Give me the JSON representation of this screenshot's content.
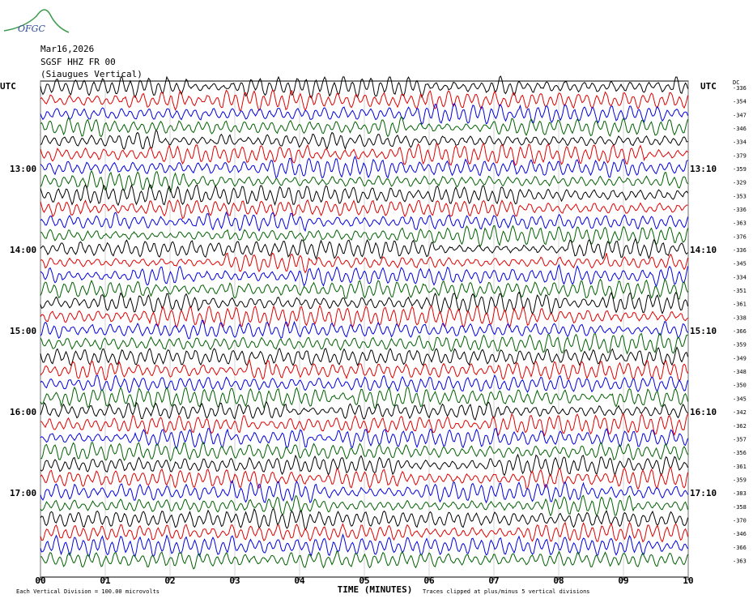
{
  "header": {
    "logo": "OFGC",
    "date": "Mar16,2026",
    "station": "SGSF HHZ FR 00",
    "location": "(Siaugues Vertical)",
    "left_unit": "UTC",
    "right_unit": "UTC",
    "dc_label": "DC"
  },
  "chart_data": {
    "type": "helicorder",
    "xlabel": "TIME (MINUTES)",
    "xlim": [
      0,
      10
    ],
    "xticks": [
      {
        "value": 0,
        "label": "00"
      },
      {
        "value": 1,
        "label": "01"
      },
      {
        "value": 2,
        "label": "02"
      },
      {
        "value": 3,
        "label": "03"
      },
      {
        "value": 4,
        "label": "04"
      },
      {
        "value": 5,
        "label": "05"
      },
      {
        "value": 6,
        "label": "06"
      },
      {
        "value": 7,
        "label": "07"
      },
      {
        "value": 8,
        "label": "08"
      },
      {
        "value": 9,
        "label": "09"
      },
      {
        "value": 10,
        "label": "10"
      }
    ],
    "trace_colors": [
      "#000000",
      "#e00000",
      "#0000e0",
      "#006000"
    ],
    "left_labels": [
      null,
      null,
      null,
      null,
      null,
      null,
      "13:00",
      null,
      null,
      null,
      null,
      null,
      "14:00",
      null,
      null,
      null,
      null,
      null,
      "15:00",
      null,
      null,
      null,
      null,
      null,
      "16:00",
      null,
      null,
      null,
      null,
      null,
      "17:00",
      null,
      null,
      null,
      null,
      null
    ],
    "right_labels": [
      null,
      null,
      null,
      null,
      null,
      null,
      "13:10",
      null,
      null,
      null,
      null,
      null,
      "14:10",
      null,
      null,
      null,
      null,
      null,
      "15:10",
      null,
      null,
      null,
      null,
      null,
      "16:10",
      null,
      null,
      null,
      null,
      null,
      "17:10",
      null,
      null,
      null,
      null,
      null
    ],
    "dc_offsets": [
      -336,
      -354,
      -347,
      -346,
      -334,
      -379,
      -359,
      -329,
      -353,
      -336,
      -363,
      -376,
      -336,
      -345,
      -334,
      -351,
      -361,
      -338,
      -366,
      -359,
      -349,
      -348,
      -350,
      -345,
      -342,
      -362,
      -357,
      -356,
      -361,
      -359,
      -383,
      -358,
      -370,
      -346,
      -366,
      -363
    ],
    "footnote_left": "Each Vertical Division =  100.00 microvolts",
    "footnote_right": "Traces clipped at plus/minus 5 vertical divisions"
  }
}
